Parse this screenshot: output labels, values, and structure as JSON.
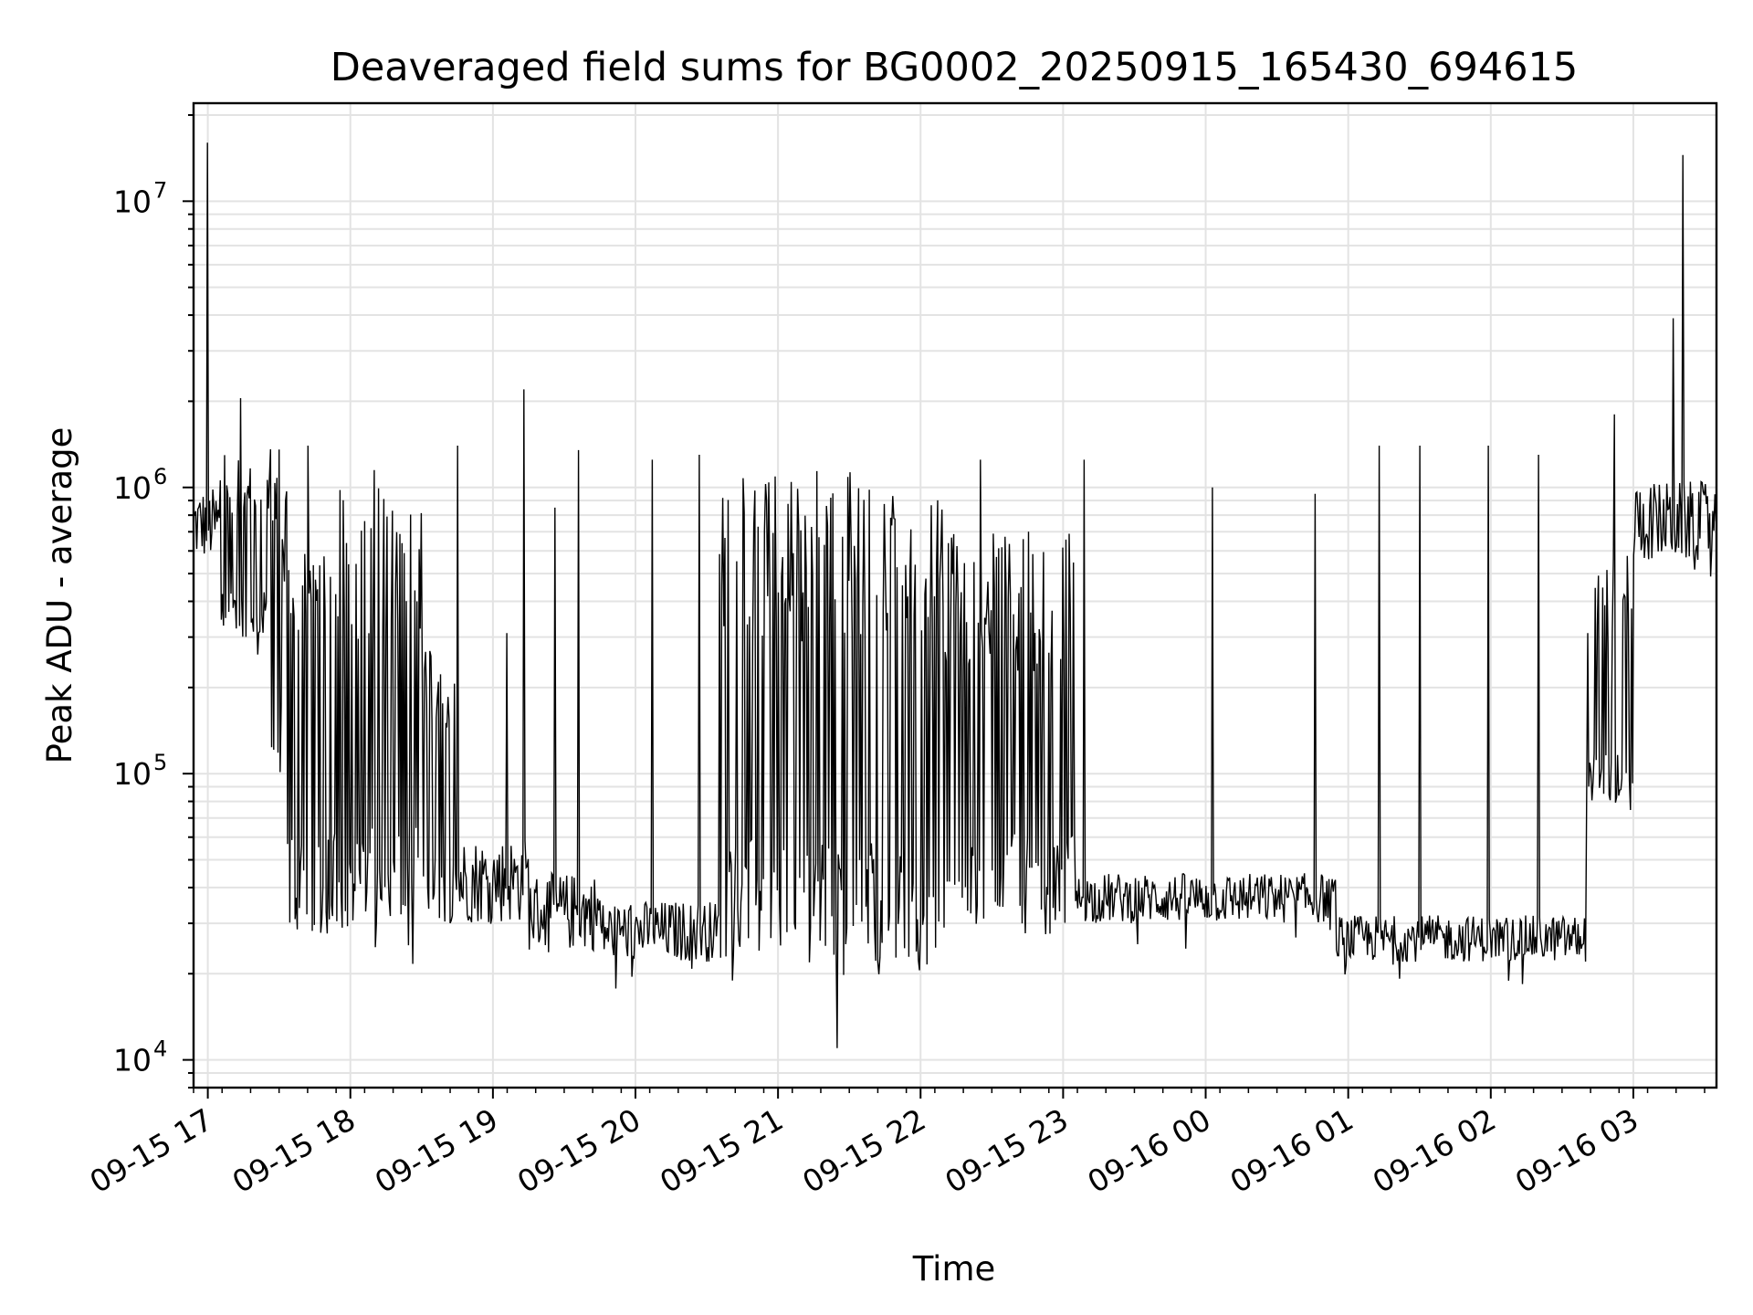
{
  "chart_data": {
    "type": "line",
    "title": "Deaveraged field sums for BG0002_20250915_165430_694615",
    "xlabel": "Time",
    "ylabel": "Peak ADU - average",
    "yscale": "log",
    "grid": true,
    "legend": "none",
    "line_color": "#000000",
    "xlim": [
      "2025-09-15 16:54",
      "2025-09-16 03:35"
    ],
    "ylim": [
      8000,
      22000000
    ],
    "x_ticks": [
      "09-15 17",
      "09-15 18",
      "09-15 19",
      "09-15 20",
      "09-15 21",
      "09-15 22",
      "09-15 23",
      "09-16 00",
      "09-16 01",
      "09-16 02",
      "09-16 03"
    ],
    "y_ticks": [
      {
        "value": 10000,
        "base": "10",
        "exp": "4"
      },
      {
        "value": 100000,
        "base": "10",
        "exp": "5"
      },
      {
        "value": 1000000,
        "base": "10",
        "exp": "6"
      },
      {
        "value": 10000000,
        "base": "10",
        "exp": "7"
      }
    ],
    "segments": [
      {
        "start": "2025-09-15 16:54",
        "end": "2025-09-15 17:05",
        "floor": 550000,
        "ceil": 1000000
      },
      {
        "start": "2025-09-15 17:05",
        "end": "2025-09-15 17:25",
        "floor": 300000,
        "ceil": 1300000
      },
      {
        "start": "2025-09-15 17:25",
        "end": "2025-09-15 17:32",
        "floor": 90000,
        "ceil": 1400000
      },
      {
        "start": "2025-09-15 17:32",
        "end": "2025-09-15 18:30",
        "floor": 27000,
        "ceil": 1000000
      },
      {
        "start": "2025-09-15 18:30",
        "end": "2025-09-15 18:45",
        "floor": 30000,
        "ceil": 280000
      },
      {
        "start": "2025-09-15 18:45",
        "end": "2025-09-15 19:15",
        "floor": 30000,
        "ceil": 60000
      },
      {
        "start": "2025-09-15 19:15",
        "end": "2025-09-15 19:45",
        "floor": 24000,
        "ceil": 45000
      },
      {
        "start": "2025-09-15 19:45",
        "end": "2025-09-15 20:35",
        "floor": 22000,
        "ceil": 36000
      },
      {
        "start": "2025-09-15 20:35",
        "end": "2025-09-15 22:10",
        "floor": 22000,
        "ceil": 1150000
      },
      {
        "start": "2025-09-15 22:10",
        "end": "2025-09-15 23:05",
        "floor": 28000,
        "ceil": 700000
      },
      {
        "start": "2025-09-15 23:05",
        "end": "2025-09-16 00:55",
        "floor": 30000,
        "ceil": 45000
      },
      {
        "start": "2025-09-16 00:55",
        "end": "2025-09-16 02:40",
        "floor": 22000,
        "ceil": 32000
      },
      {
        "start": "2025-09-16 02:40",
        "end": "2025-09-16 03:00",
        "floor": 70000,
        "ceil": 600000
      },
      {
        "start": "2025-09-16 03:00",
        "end": "2025-09-16 03:35",
        "floor": 550000,
        "ceil": 1050000
      }
    ],
    "spikes": [
      {
        "x": "2025-09-15 17:00",
        "y": 16000000
      },
      {
        "x": "2025-09-15 17:14",
        "y": 2050000
      },
      {
        "x": "2025-09-15 17:42",
        "y": 1400000
      },
      {
        "x": "2025-09-15 18:10",
        "y": 1150000
      },
      {
        "x": "2025-09-15 18:45",
        "y": 1400000
      },
      {
        "x": "2025-09-15 19:06",
        "y": 310000
      },
      {
        "x": "2025-09-15 19:13",
        "y": 2200000
      },
      {
        "x": "2025-09-15 19:26",
        "y": 850000
      },
      {
        "x": "2025-09-15 19:36",
        "y": 1350000
      },
      {
        "x": "2025-09-15 20:07",
        "y": 1250000
      },
      {
        "x": "2025-09-15 20:27",
        "y": 1300000
      },
      {
        "x": "2025-09-15 21:25",
        "y": 11000
      },
      {
        "x": "2025-09-15 22:25",
        "y": 1250000
      },
      {
        "x": "2025-09-15 23:09",
        "y": 1250000
      },
      {
        "x": "2025-09-16 00:03",
        "y": 1000000
      },
      {
        "x": "2025-09-16 00:46",
        "y": 950000
      },
      {
        "x": "2025-09-16 01:13",
        "y": 1400000
      },
      {
        "x": "2025-09-16 01:30",
        "y": 1400000
      },
      {
        "x": "2025-09-16 01:59",
        "y": 1400000
      },
      {
        "x": "2025-09-16 02:20",
        "y": 1300000
      },
      {
        "x": "2025-09-16 02:52",
        "y": 1800000
      },
      {
        "x": "2025-09-16 03:17",
        "y": 3900000
      },
      {
        "x": "2025-09-16 03:21",
        "y": 14500000
      }
    ]
  }
}
